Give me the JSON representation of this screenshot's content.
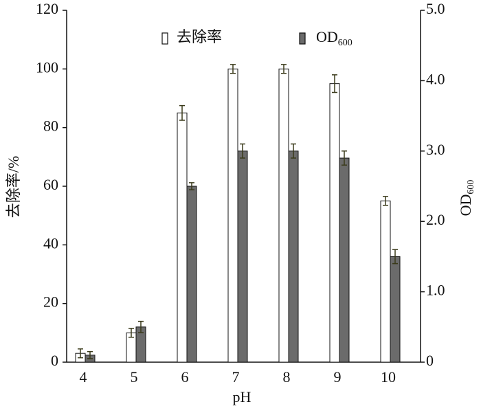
{
  "chart_data": {
    "type": "bar",
    "xlabel": "pH",
    "ylabel": "去除率/%",
    "y2label": "OD",
    "y2label_subscript": "600",
    "categories": [
      "4",
      "5",
      "6",
      "7",
      "8",
      "9",
      "10"
    ],
    "ylim": [
      0,
      120
    ],
    "yticks": [
      0,
      20,
      40,
      60,
      80,
      100,
      120
    ],
    "y2lim": [
      0,
      5.0
    ],
    "y2ticks": [
      0,
      {
        "value": 1.0,
        "label": "1.0"
      },
      {
        "value": 2.0,
        "label": "2.0"
      },
      {
        "value": 3.0,
        "label": "3.0"
      },
      {
        "value": 4.0,
        "label": "4.0"
      },
      {
        "value": 5.0,
        "label": "5.0"
      }
    ],
    "legend": "top",
    "series": [
      {
        "name": "去除率",
        "color": "#ffffff",
        "values": [
          3,
          10,
          85,
          100,
          100,
          95,
          55
        ],
        "errors": [
          1.5,
          1.5,
          2.5,
          1.5,
          1.5,
          3,
          1.5
        ]
      },
      {
        "name": "OD",
        "name_subscript": "600",
        "color": "#6b6b6b",
        "axis": "y2",
        "values": [
          0.1,
          0.5,
          2.5,
          3.0,
          3.0,
          2.9,
          1.5
        ],
        "errors": [
          0.05,
          0.08,
          0.05,
          0.1,
          0.1,
          0.1,
          0.1
        ]
      }
    ]
  }
}
